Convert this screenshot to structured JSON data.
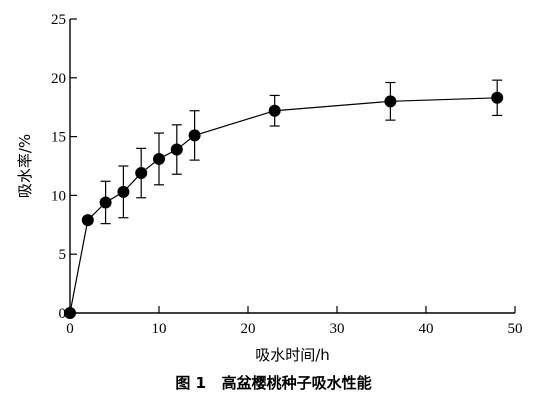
{
  "figure": {
    "caption": "图 1   高盆樱桃种子吸水性能"
  },
  "chart_data": {
    "type": "line",
    "xlabel": "吸水时间/h",
    "ylabel": "吸水率/%",
    "xlim": [
      0,
      50
    ],
    "ylim": [
      0,
      25
    ],
    "x_ticks": [
      0,
      10,
      20,
      30,
      40,
      50
    ],
    "y_ticks": [
      0,
      5,
      10,
      15,
      20,
      25
    ],
    "grid": false,
    "legend": "none",
    "marker": "filled-circle",
    "colors": {
      "line": "#000000",
      "marker": "#000000"
    },
    "series": [
      {
        "x": [
          0,
          2,
          4,
          6,
          8,
          10,
          12,
          14,
          23,
          36,
          48
        ],
        "y": [
          0,
          7.9,
          9.4,
          10.3,
          11.9,
          13.1,
          13.9,
          15.1,
          17.2,
          18.0,
          18.3
        ],
        "error": [
          0,
          0,
          1.8,
          2.2,
          2.1,
          2.2,
          2.1,
          2.1,
          1.3,
          1.6,
          1.5
        ]
      }
    ]
  }
}
